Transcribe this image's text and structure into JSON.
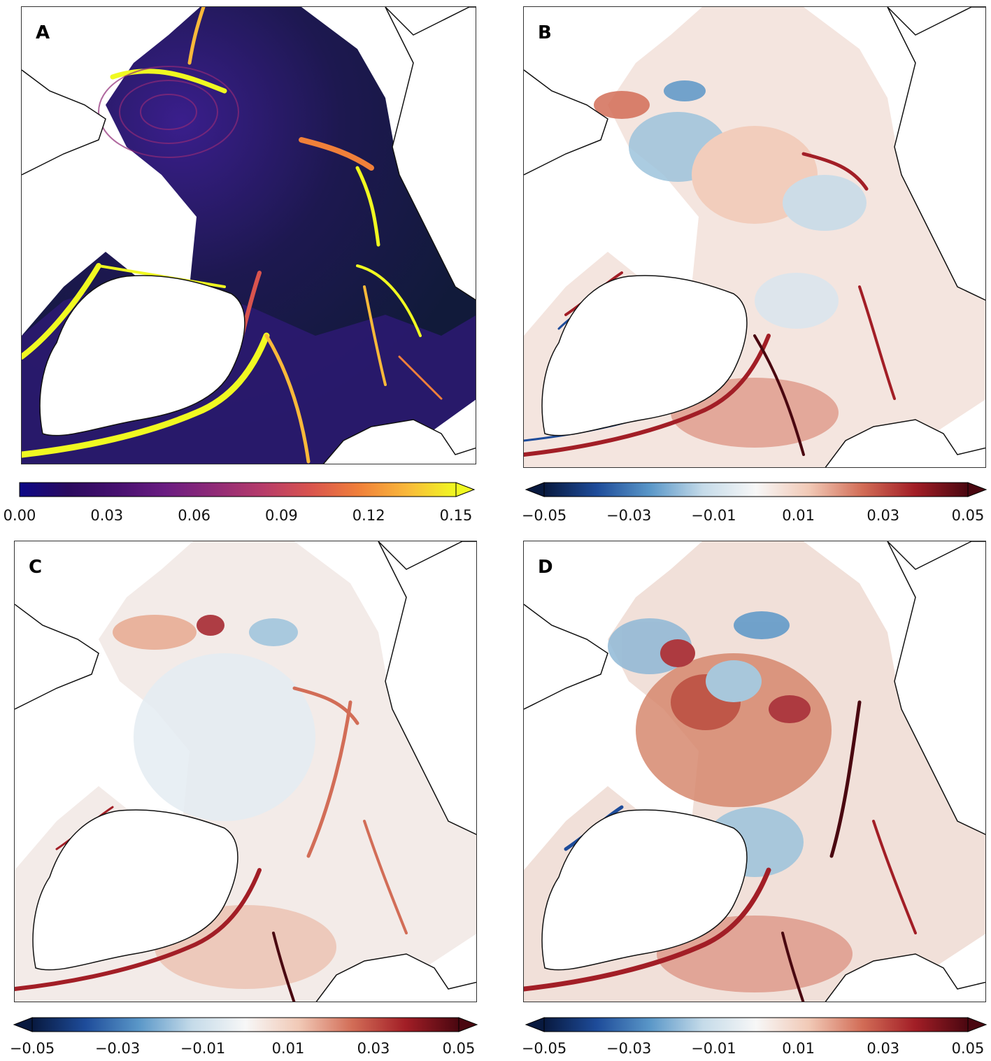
{
  "panels": [
    {
      "label": "A",
      "field": "speed"
    },
    {
      "label": "B",
      "field": "anomaly"
    },
    {
      "label": "C",
      "field": "anomaly"
    },
    {
      "label": "D",
      "field": "anomaly"
    }
  ],
  "colorbars": [
    {
      "colormap": "plasma-like",
      "min": 0.0,
      "max": 0.15,
      "extend": "max",
      "ticks": [
        "0.00",
        "0.03",
        "0.06",
        "0.09",
        "0.12",
        "0.15"
      ]
    },
    {
      "colormap": "blue-white-red",
      "min": -0.05,
      "max": 0.05,
      "extend": "both",
      "ticks": [
        "−0.05",
        "−0.03",
        "−0.01",
        "0.01",
        "0.03",
        "0.05"
      ]
    },
    {
      "colormap": "blue-white-red",
      "min": -0.05,
      "max": 0.05,
      "extend": "both",
      "ticks": [
        "−0.05",
        "−0.03",
        "−0.01",
        "0.01",
        "0.03",
        "0.05"
      ]
    },
    {
      "colormap": "blue-white-red",
      "min": -0.05,
      "max": 0.05,
      "extend": "both",
      "ticks": [
        "−0.05",
        "−0.03",
        "−0.01",
        "0.01",
        "0.03",
        "0.05"
      ]
    }
  ],
  "colors": {
    "plasma": [
      "#0d0887",
      "#2a0a5e",
      "#46106f",
      "#6a1c81",
      "#8f2a77",
      "#b63b6a",
      "#d9544e",
      "#f0803a",
      "#f9b93a",
      "#f0f921"
    ],
    "diverging": [
      "#08193f",
      "#1e4c9a",
      "#5a97c8",
      "#c5dbe9",
      "#f7f7f7",
      "#f1c9b6",
      "#d26d57",
      "#a21e26",
      "#4a0710"
    ],
    "land": "#ffffff",
    "coast": "#111111"
  }
}
